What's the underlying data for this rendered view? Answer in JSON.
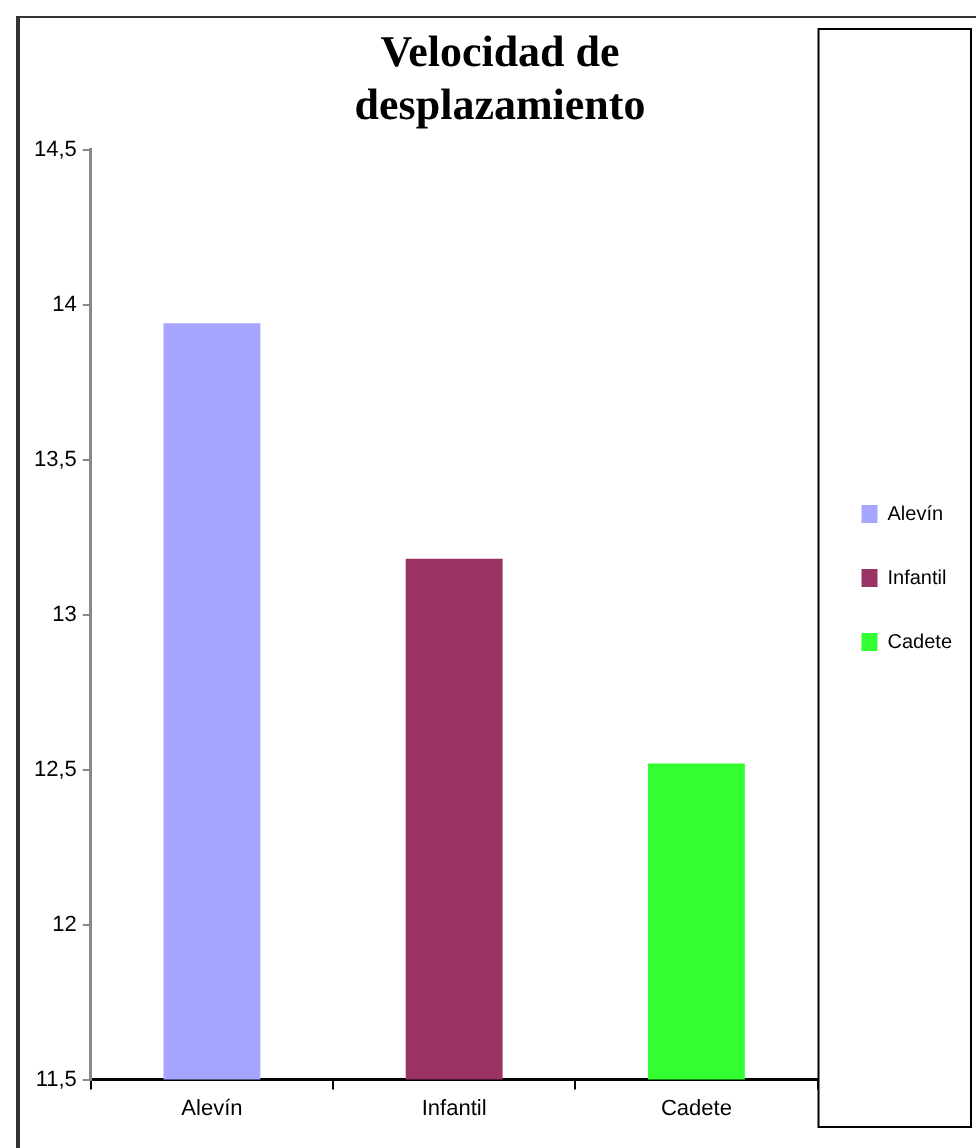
{
  "chart_data": {
    "type": "bar",
    "title": "Velocidad de desplazamiento",
    "categories": [
      "Alevín",
      "Infantil",
      "Cadete"
    ],
    "series": [
      {
        "name": "Alevín",
        "color": "#a6a6ff",
        "values": [
          13.94,
          null,
          null
        ]
      },
      {
        "name": "Infantil",
        "color": "#993366",
        "values": [
          null,
          13.18,
          null
        ]
      },
      {
        "name": "Cadete",
        "color": "#33ff33",
        "values": [
          null,
          null,
          12.52
        ]
      }
    ],
    "ylim": [
      11.5,
      14.5
    ],
    "yticks": [
      {
        "value": 11.5,
        "label": "11,5"
      },
      12,
      {
        "value": 12.5,
        "label": "12,5"
      },
      13,
      {
        "value": 13.5,
        "label": "13,5"
      },
      14,
      {
        "value": 14.5,
        "label": "14,5"
      }
    ],
    "grid": false,
    "legend": "right"
  }
}
